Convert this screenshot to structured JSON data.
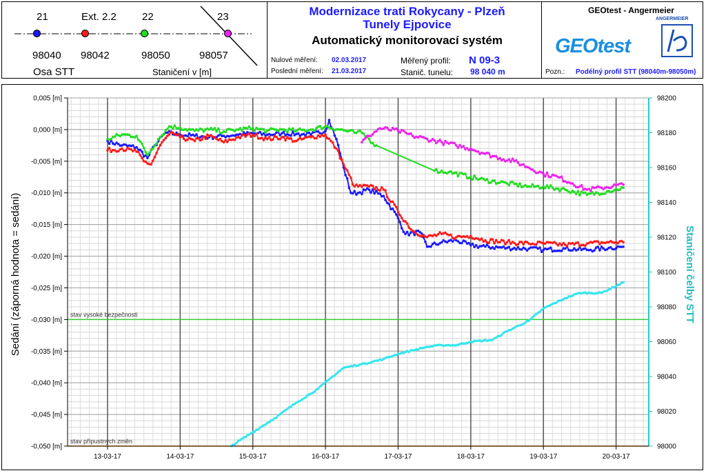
{
  "header": {
    "legend": {
      "points": [
        {
          "id": "21",
          "station": "98040",
          "color": "#1a1aff"
        },
        {
          "id": "Ext. 2.2",
          "station": "98042",
          "color": "#ff1a1a"
        },
        {
          "id": "22",
          "station": "98050",
          "color": "#22dd22"
        },
        {
          "id": "23",
          "station": "98057",
          "color": "#ee22ee"
        }
      ],
      "axis_label": "Osa STT",
      "station_label": "Staničení v [m]"
    },
    "title_line1": "Modernizace trati Rokycany - Plzeň",
    "title_line2": "Tunely Ejpovice",
    "subtitle": "Automatický monitorovací systém",
    "zero_label": "Nulové měření:",
    "zero_value": "02.03.2017",
    "last_label": "Poslední měření:",
    "last_value": "21.03.2017",
    "profile_label": "Měřený profil:",
    "profile_value": "N 09-3",
    "tunnel_label": "Stanič. tunelu:",
    "tunnel_value": "98 040 m",
    "company": "GEOtest - Angermeier",
    "logo_text": "GEOtest",
    "logo2_text": "ANGERMEIER",
    "note_label": "Pozn.:",
    "note_value": "Podélný profil STT (98040m-98050m)"
  },
  "chart_data": {
    "type": "line",
    "ylabel": "Sedání (záporná hodnota = sedání)",
    "y2label": "Staničení čelby STT",
    "x_ticks": [
      "13-03-17",
      "14-03-17",
      "15-03-17",
      "16-03-17",
      "17-03-17",
      "18-03-17",
      "19-03-17",
      "20-03-17"
    ],
    "y_ticks": [
      "0,005 [m]",
      "0,000 [m]",
      "-0,005 [m]",
      "-0,010 [m]",
      "-0,015 [m]",
      "-0,020 [m]",
      "-0,025 [m]",
      "-0,030 [m]",
      "-0,035 [m]",
      "-0,040 [m]",
      "-0,045 [m]",
      "-0,050 [m]"
    ],
    "y2_ticks": [
      "98200",
      "98180",
      "98160",
      "98140",
      "98120",
      "98100",
      "98080",
      "98060",
      "98040",
      "98020",
      "98000"
    ],
    "ylim": [
      -0.05,
      0.005
    ],
    "y2lim": [
      98000,
      98200
    ],
    "xlim": [
      12.45,
      20.45
    ],
    "grid": true,
    "thresholds": [
      {
        "label": "stav vysoké bezpečnosti",
        "value": -0.03,
        "color": "#33cc33"
      },
      {
        "label": "stav přípustných změn",
        "value": -0.05,
        "color": "#ff8800"
      }
    ],
    "series": [
      {
        "name": "21",
        "color": "#1a1aff",
        "axis": "left",
        "points": [
          [
            13.0,
            -0.0018
          ],
          [
            13.2,
            -0.0025
          ],
          [
            13.4,
            -0.0028
          ],
          [
            13.55,
            -0.0045
          ],
          [
            13.65,
            -0.0025
          ],
          [
            13.8,
            -0.0005
          ],
          [
            14.0,
            -0.0008
          ],
          [
            14.2,
            -0.001
          ],
          [
            14.4,
            -0.0012
          ],
          [
            14.6,
            -0.001
          ],
          [
            14.8,
            -0.0008
          ],
          [
            15.0,
            -0.0006
          ],
          [
            15.2,
            -0.0008
          ],
          [
            15.4,
            -0.0006
          ],
          [
            15.6,
            -0.0007
          ],
          [
            15.8,
            -0.0008
          ],
          [
            16.0,
            -0.0002
          ],
          [
            16.05,
            0.0015
          ],
          [
            16.15,
            -0.0015
          ],
          [
            16.25,
            -0.006
          ],
          [
            16.35,
            -0.01
          ],
          [
            16.45,
            -0.01
          ],
          [
            16.6,
            -0.0095
          ],
          [
            16.8,
            -0.0105
          ],
          [
            17.0,
            -0.014
          ],
          [
            17.1,
            -0.0165
          ],
          [
            17.3,
            -0.0162
          ],
          [
            17.4,
            -0.0185
          ],
          [
            17.6,
            -0.0178
          ],
          [
            17.8,
            -0.0175
          ],
          [
            18.0,
            -0.0183
          ],
          [
            18.2,
            -0.0185
          ],
          [
            18.5,
            -0.0187
          ],
          [
            18.8,
            -0.0188
          ],
          [
            19.0,
            -0.019
          ],
          [
            19.3,
            -0.0188
          ],
          [
            19.6,
            -0.019
          ],
          [
            19.9,
            -0.0187
          ],
          [
            20.1,
            -0.0185
          ]
        ]
      },
      {
        "name": "Ext. 2.2",
        "color": "#ff1a1a",
        "axis": "left",
        "points": [
          [
            13.0,
            -0.0033
          ],
          [
            13.2,
            -0.003
          ],
          [
            13.4,
            -0.0035
          ],
          [
            13.5,
            -0.005
          ],
          [
            13.6,
            -0.0055
          ],
          [
            13.75,
            -0.002
          ],
          [
            13.9,
            -0.0005
          ],
          [
            14.0,
            -0.0012
          ],
          [
            14.2,
            -0.0018
          ],
          [
            14.4,
            -0.001
          ],
          [
            14.6,
            -0.002
          ],
          [
            14.8,
            -0.0012
          ],
          [
            15.0,
            -0.0008
          ],
          [
            15.2,
            -0.0015
          ],
          [
            15.4,
            -0.0012
          ],
          [
            15.6,
            -0.0018
          ],
          [
            15.8,
            -0.0012
          ],
          [
            16.0,
            -0.0008
          ],
          [
            16.15,
            -0.003
          ],
          [
            16.25,
            -0.0055
          ],
          [
            16.4,
            -0.009
          ],
          [
            16.6,
            -0.009
          ],
          [
            16.8,
            -0.0095
          ],
          [
            17.0,
            -0.013
          ],
          [
            17.2,
            -0.016
          ],
          [
            17.4,
            -0.017
          ],
          [
            17.6,
            -0.0165
          ],
          [
            17.8,
            -0.017
          ],
          [
            18.0,
            -0.0168
          ],
          [
            18.2,
            -0.0175
          ],
          [
            18.5,
            -0.0178
          ],
          [
            18.8,
            -0.018
          ],
          [
            19.0,
            -0.018
          ],
          [
            19.3,
            -0.0182
          ],
          [
            19.6,
            -0.018
          ],
          [
            19.9,
            -0.0178
          ],
          [
            20.1,
            -0.0178
          ]
        ]
      },
      {
        "name": "22",
        "color": "#22dd22",
        "axis": "left",
        "points": [
          [
            13.0,
            -0.0015
          ],
          [
            13.2,
            -0.0008
          ],
          [
            13.4,
            -0.001
          ],
          [
            13.55,
            -0.004
          ],
          [
            13.7,
            -0.0015
          ],
          [
            13.85,
            0.0005
          ],
          [
            14.0,
            0.0003
          ],
          [
            14.2,
            -0.0002
          ],
          [
            14.4,
            0.0
          ],
          [
            14.6,
            -0.0003
          ],
          [
            14.8,
            0.0
          ],
          [
            15.0,
            0.0002
          ],
          [
            15.2,
            -0.0002
          ],
          [
            15.4,
            0.0
          ],
          [
            15.6,
            -0.0002
          ],
          [
            15.8,
            0.0
          ],
          [
            16.0,
            0.0005
          ],
          [
            16.2,
            0.0
          ],
          [
            16.4,
            -0.0005
          ],
          [
            16.5,
            -0.0005
          ],
          [
            16.6,
            -0.0015
          ],
          [
            16.7,
            -0.0025
          ],
          [
            17.5,
            -0.0065
          ],
          [
            17.7,
            -0.0067
          ],
          [
            18.0,
            -0.0075
          ],
          [
            18.2,
            -0.008
          ],
          [
            18.5,
            -0.0085
          ],
          [
            18.8,
            -0.009
          ],
          [
            19.0,
            -0.009
          ],
          [
            19.3,
            -0.0095
          ],
          [
            19.6,
            -0.0103
          ],
          [
            19.9,
            -0.0097
          ],
          [
            20.1,
            -0.0092
          ]
        ]
      },
      {
        "name": "23",
        "color": "#ee22ee",
        "axis": "left",
        "points": [
          [
            16.5,
            -0.002
          ],
          [
            16.6,
            -0.001
          ],
          [
            16.75,
            0.0002
          ],
          [
            17.0,
            -0.0002
          ],
          [
            17.2,
            -0.001
          ],
          [
            17.4,
            -0.0015
          ],
          [
            17.6,
            -0.002
          ],
          [
            17.8,
            -0.0025
          ],
          [
            18.0,
            -0.003
          ],
          [
            18.2,
            -0.0038
          ],
          [
            18.4,
            -0.0045
          ],
          [
            18.6,
            -0.005
          ],
          [
            18.8,
            -0.006
          ],
          [
            19.0,
            -0.007
          ],
          [
            19.2,
            -0.0075
          ],
          [
            19.4,
            -0.0085
          ],
          [
            19.6,
            -0.0095
          ],
          [
            19.8,
            -0.0092
          ],
          [
            20.1,
            -0.0087
          ]
        ]
      },
      {
        "name": "Staničení čelby STT",
        "color": "#33e6ee",
        "axis": "right",
        "points": [
          [
            14.7,
            98000
          ],
          [
            15.0,
            98008
          ],
          [
            15.3,
            98016
          ],
          [
            15.6,
            98025
          ],
          [
            15.9,
            98033
          ],
          [
            16.1,
            98040
          ],
          [
            16.25,
            98045
          ],
          [
            16.5,
            98047
          ],
          [
            16.8,
            98050
          ],
          [
            17.0,
            98053
          ],
          [
            17.2,
            98055
          ],
          [
            17.4,
            98057
          ],
          [
            17.6,
            98058
          ],
          [
            17.8,
            98058
          ],
          [
            18.0,
            98060
          ],
          [
            18.3,
            98061
          ],
          [
            18.5,
            98066
          ],
          [
            18.8,
            98072
          ],
          [
            19.0,
            98079
          ],
          [
            19.3,
            98085
          ],
          [
            19.5,
            98088
          ],
          [
            19.8,
            98088
          ],
          [
            20.1,
            98094
          ]
        ]
      }
    ]
  }
}
